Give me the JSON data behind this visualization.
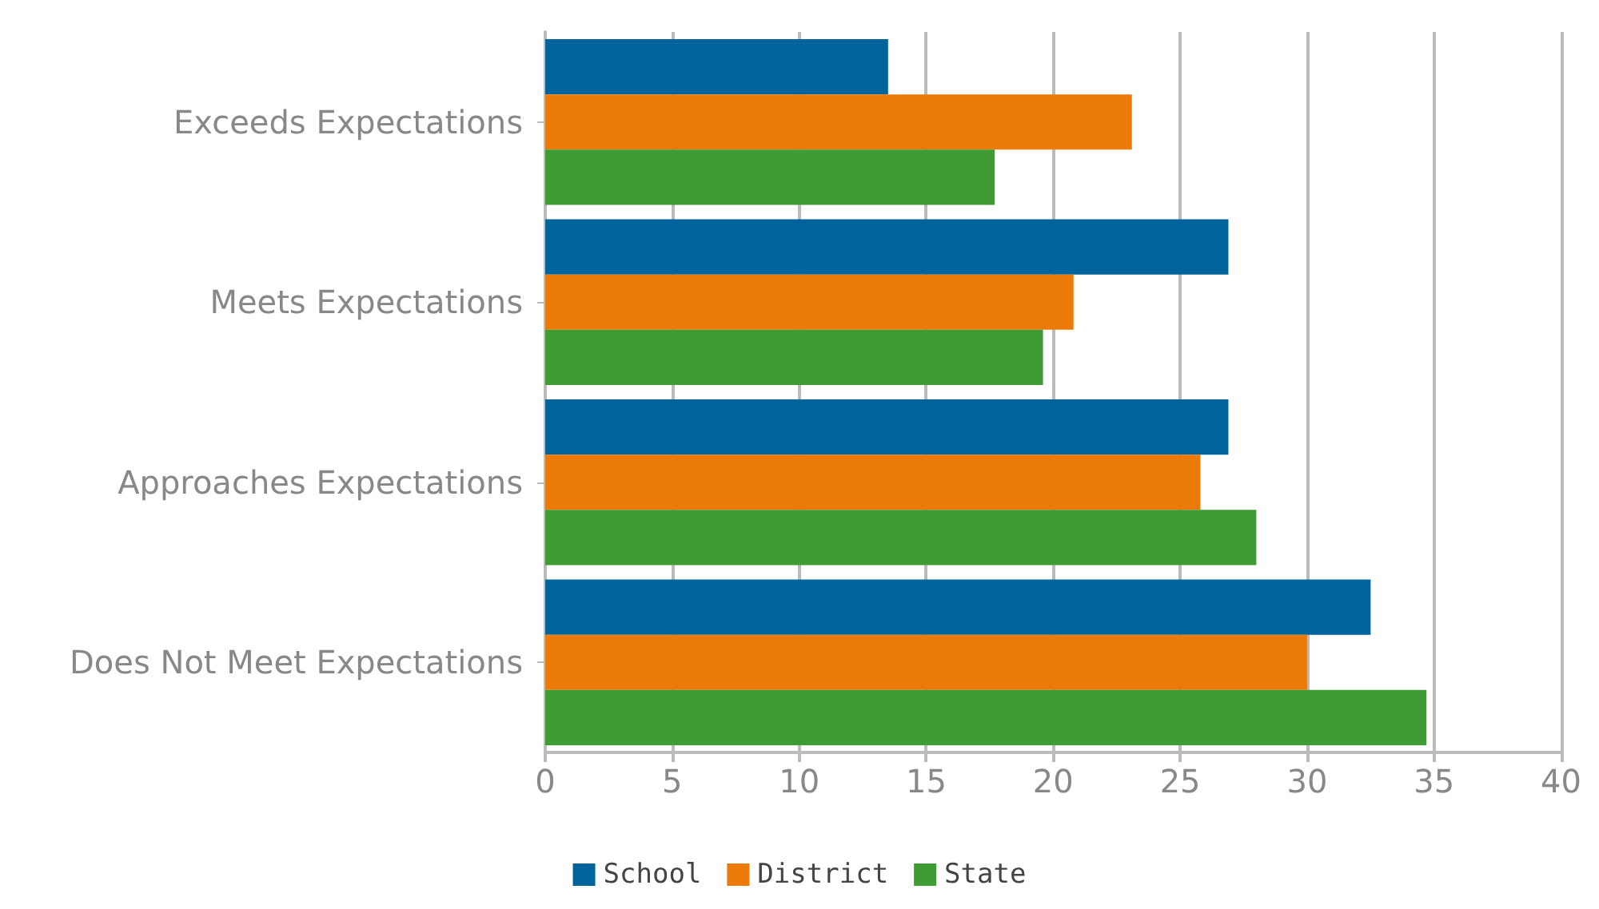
{
  "chart_data": {
    "type": "bar",
    "orientation": "horizontal",
    "categories": [
      "Exceeds Expectations",
      "Meets Expectations",
      "Approaches Expectations",
      "Does Not Meet Expectations"
    ],
    "series": [
      {
        "name": "School",
        "color": "#00649c",
        "values": [
          13.5,
          26.9,
          26.9,
          32.5
        ]
      },
      {
        "name": "District",
        "color": "#eb7a09",
        "values": [
          23.1,
          20.8,
          25.8,
          30.0
        ]
      },
      {
        "name": "State",
        "color": "#3f9c35",
        "values": [
          17.7,
          19.6,
          28.0,
          34.7
        ]
      }
    ],
    "xlim": [
      0,
      40
    ],
    "xticks": [
      0,
      5,
      10,
      15,
      20,
      25,
      30,
      35,
      40
    ],
    "grid": "x",
    "legend": "bottom"
  }
}
